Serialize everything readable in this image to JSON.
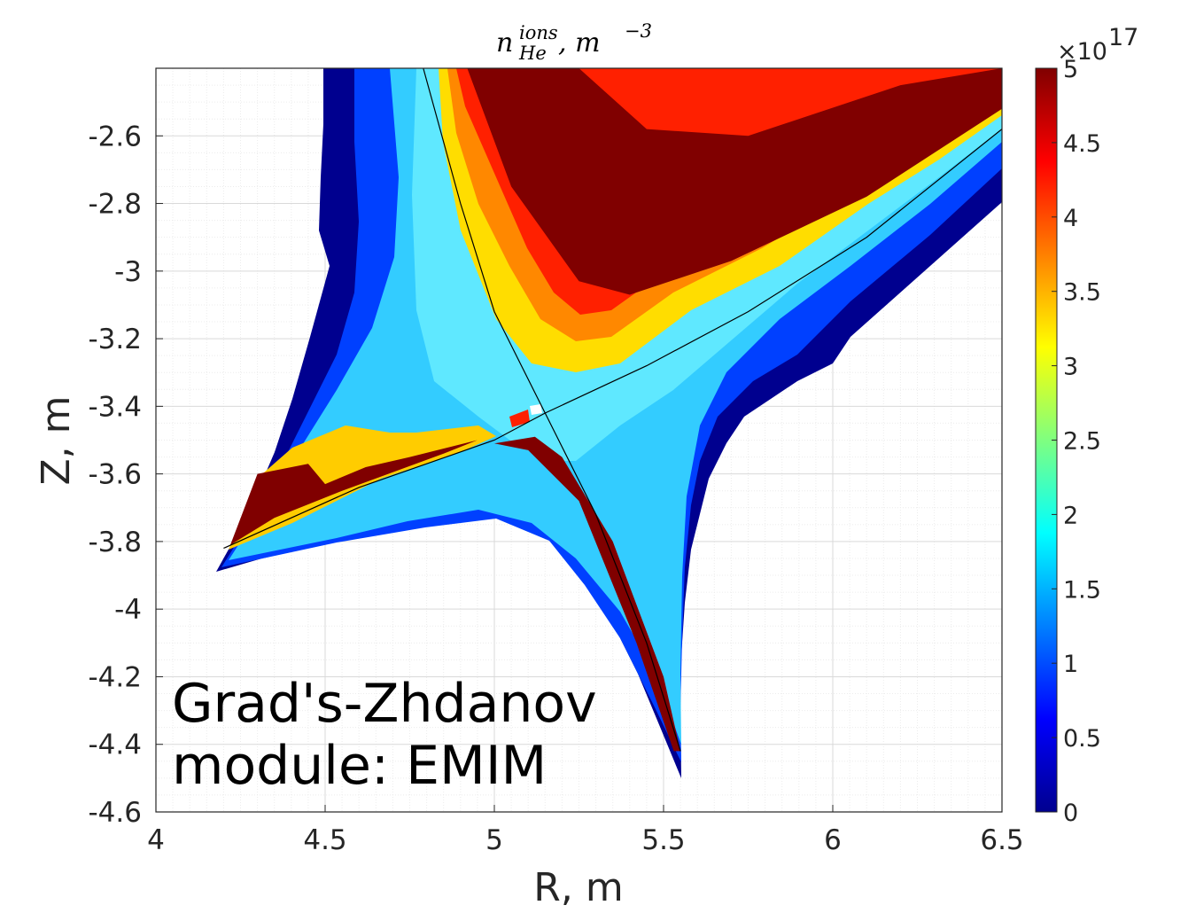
{
  "chart_data": {
    "type": "heatmap",
    "title": {
      "base": "n",
      "superscript": "ions",
      "subscript": "He",
      "unit_prefix": ",  m",
      "unit_exponent": "−3"
    },
    "xlabel": "R, m",
    "ylabel": "Z, m",
    "xlim": [
      4,
      6.5
    ],
    "ylim": [
      -4.6,
      -2.4
    ],
    "x_ticks": [
      "4",
      "4.5",
      "5",
      "5.5",
      "6",
      "6.5"
    ],
    "y_ticks": [
      "-2.6",
      "-2.8",
      "-3",
      "-3.2",
      "-3.4",
      "-3.6",
      "-3.8",
      "-4",
      "-4.2",
      "-4.4",
      "-4.6"
    ],
    "grid": "on (major and minor)",
    "colormap": "jet",
    "colorbar": {
      "range": [
        0,
        5
      ],
      "ticks": [
        "0",
        "0.5",
        "1",
        "1.5",
        "2",
        "2.5",
        "3",
        "3.5",
        "4",
        "4.5",
        "5"
      ],
      "exponent_multiplier": "×10",
      "exponent_power": "17"
    },
    "annotation": [
      "Grad's-Zhdanov",
      "module: EMIM"
    ],
    "separatrix": {
      "legs": [
        [
          [
            4.79,
            -2.4
          ],
          [
            4.9,
            -2.8
          ],
          [
            5.0,
            -3.12
          ],
          [
            5.15,
            -3.42
          ]
        ],
        [
          [
            5.15,
            -3.42
          ],
          [
            5.3,
            -3.72
          ],
          [
            5.45,
            -4.1
          ],
          [
            5.55,
            -4.42
          ]
        ],
        [
          [
            4.2,
            -3.82
          ],
          [
            4.6,
            -3.64
          ],
          [
            5.0,
            -3.5
          ],
          [
            5.15,
            -3.42
          ]
        ],
        [
          [
            5.15,
            -3.42
          ],
          [
            5.45,
            -3.28
          ],
          [
            5.75,
            -3.12
          ],
          [
            6.1,
            -2.9
          ],
          [
            6.5,
            -2.58
          ]
        ]
      ]
    },
    "density_regions": [
      {
        "level": 5.0,
        "polygon": [
          [
            4.92,
            -2.4
          ],
          [
            5.25,
            -2.4
          ],
          [
            5.45,
            -2.58
          ],
          [
            5.75,
            -2.6
          ],
          [
            6.2,
            -2.45
          ],
          [
            6.5,
            -2.4
          ],
          [
            6.5,
            -2.52
          ],
          [
            6.1,
            -2.78
          ],
          [
            5.7,
            -2.97
          ],
          [
            5.4,
            -3.07
          ],
          [
            5.25,
            -3.03
          ],
          [
            5.05,
            -2.75
          ]
        ]
      },
      {
        "level": 5.0,
        "polygon": [
          [
            4.22,
            -3.81
          ],
          [
            4.3,
            -3.6
          ],
          [
            4.45,
            -3.57
          ],
          [
            4.5,
            -3.63
          ],
          [
            4.62,
            -3.58
          ],
          [
            4.75,
            -3.55
          ],
          [
            4.95,
            -3.5
          ],
          [
            4.85,
            -3.54
          ],
          [
            4.55,
            -3.65
          ],
          [
            4.35,
            -3.73
          ]
        ]
      },
      {
        "level": 5.0,
        "polygon": [
          [
            5.0,
            -3.51
          ],
          [
            5.12,
            -3.49
          ],
          [
            5.2,
            -3.55
          ],
          [
            5.35,
            -3.8
          ],
          [
            5.5,
            -4.2
          ],
          [
            5.55,
            -4.42
          ],
          [
            5.53,
            -4.42
          ],
          [
            5.42,
            -4.1
          ],
          [
            5.25,
            -3.68
          ],
          [
            5.1,
            -3.53
          ]
        ]
      }
    ]
  }
}
